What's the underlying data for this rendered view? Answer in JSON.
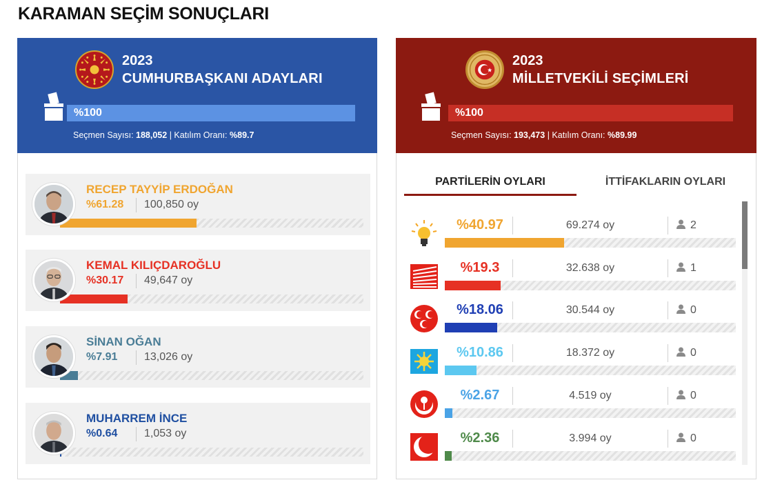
{
  "page": {
    "title": "KARAMAN SEÇİM SONUÇLARI"
  },
  "presidential": {
    "year": "2023",
    "title": "CUMHURBAŞKANI ADAYLARI",
    "progress_label": "%100",
    "progress_value": 100,
    "voters_label": "Seçmen Sayısı:",
    "voters_value": "188,052",
    "turnout_label": "| Katılım Oranı:",
    "turnout_value": "%89.7",
    "candidates": [
      {
        "name": "RECEP TAYYİP ERDOĞAN",
        "percent": "%61.28",
        "share": 61.28,
        "votes": "100,850 oy",
        "color": "#f0a530"
      },
      {
        "name": "KEMAL KILIÇDAROĞLU",
        "percent": "%30.17",
        "share": 30.17,
        "votes": "49,647 oy",
        "color": "#e63124"
      },
      {
        "name": "SİNAN OĞAN",
        "percent": "%7.91",
        "share": 7.91,
        "votes": "13,026 oy",
        "color": "#4a7d96"
      },
      {
        "name": "MUHARREM İNCE",
        "percent": "%0.64",
        "share": 0.64,
        "votes": "1,053 oy",
        "color": "#1f4fa1"
      }
    ]
  },
  "parliament": {
    "year": "2023",
    "title": "MİLLETVEKİLİ SEÇİMLERİ",
    "progress_label": "%100",
    "progress_value": 100,
    "voters_label": "Seçmen Sayısı:",
    "voters_value": "193,473",
    "turnout_label": "| Katılım Oranı:",
    "turnout_value": "%89.99",
    "tabs": {
      "parties": "PARTİLERİN OYLARI",
      "alliances": "İTTİFAKLARIN OYLARI"
    },
    "parties": [
      {
        "logo": "akp-lightbulb-icon",
        "percent": "%40.97",
        "share": 40.97,
        "votes": "69.274 oy",
        "seats": "2",
        "color": "#f0a530"
      },
      {
        "logo": "chp-six-arrows-icon",
        "percent": "%19.3",
        "share": 19.3,
        "votes": "32.638 oy",
        "seats": "1",
        "color": "#e63124"
      },
      {
        "logo": "mhp-crescents-icon",
        "percent": "%18.06",
        "share": 18.06,
        "votes": "30.544 oy",
        "seats": "0",
        "color": "#1f3fb4"
      },
      {
        "logo": "iyi-sun-icon",
        "percent": "%10.86",
        "share": 10.86,
        "votes": "18.372 oy",
        "seats": "0",
        "color": "#5cc8f0"
      },
      {
        "logo": "btp-rose-icon",
        "percent": "%2.67",
        "share": 2.67,
        "votes": "4.519 oy",
        "seats": "0",
        "color": "#4aa3e6"
      },
      {
        "logo": "yrp-crescent-icon",
        "percent": "%2.36",
        "share": 2.36,
        "votes": "3.994 oy",
        "seats": "0",
        "color": "#4f8a4a"
      }
    ]
  }
}
